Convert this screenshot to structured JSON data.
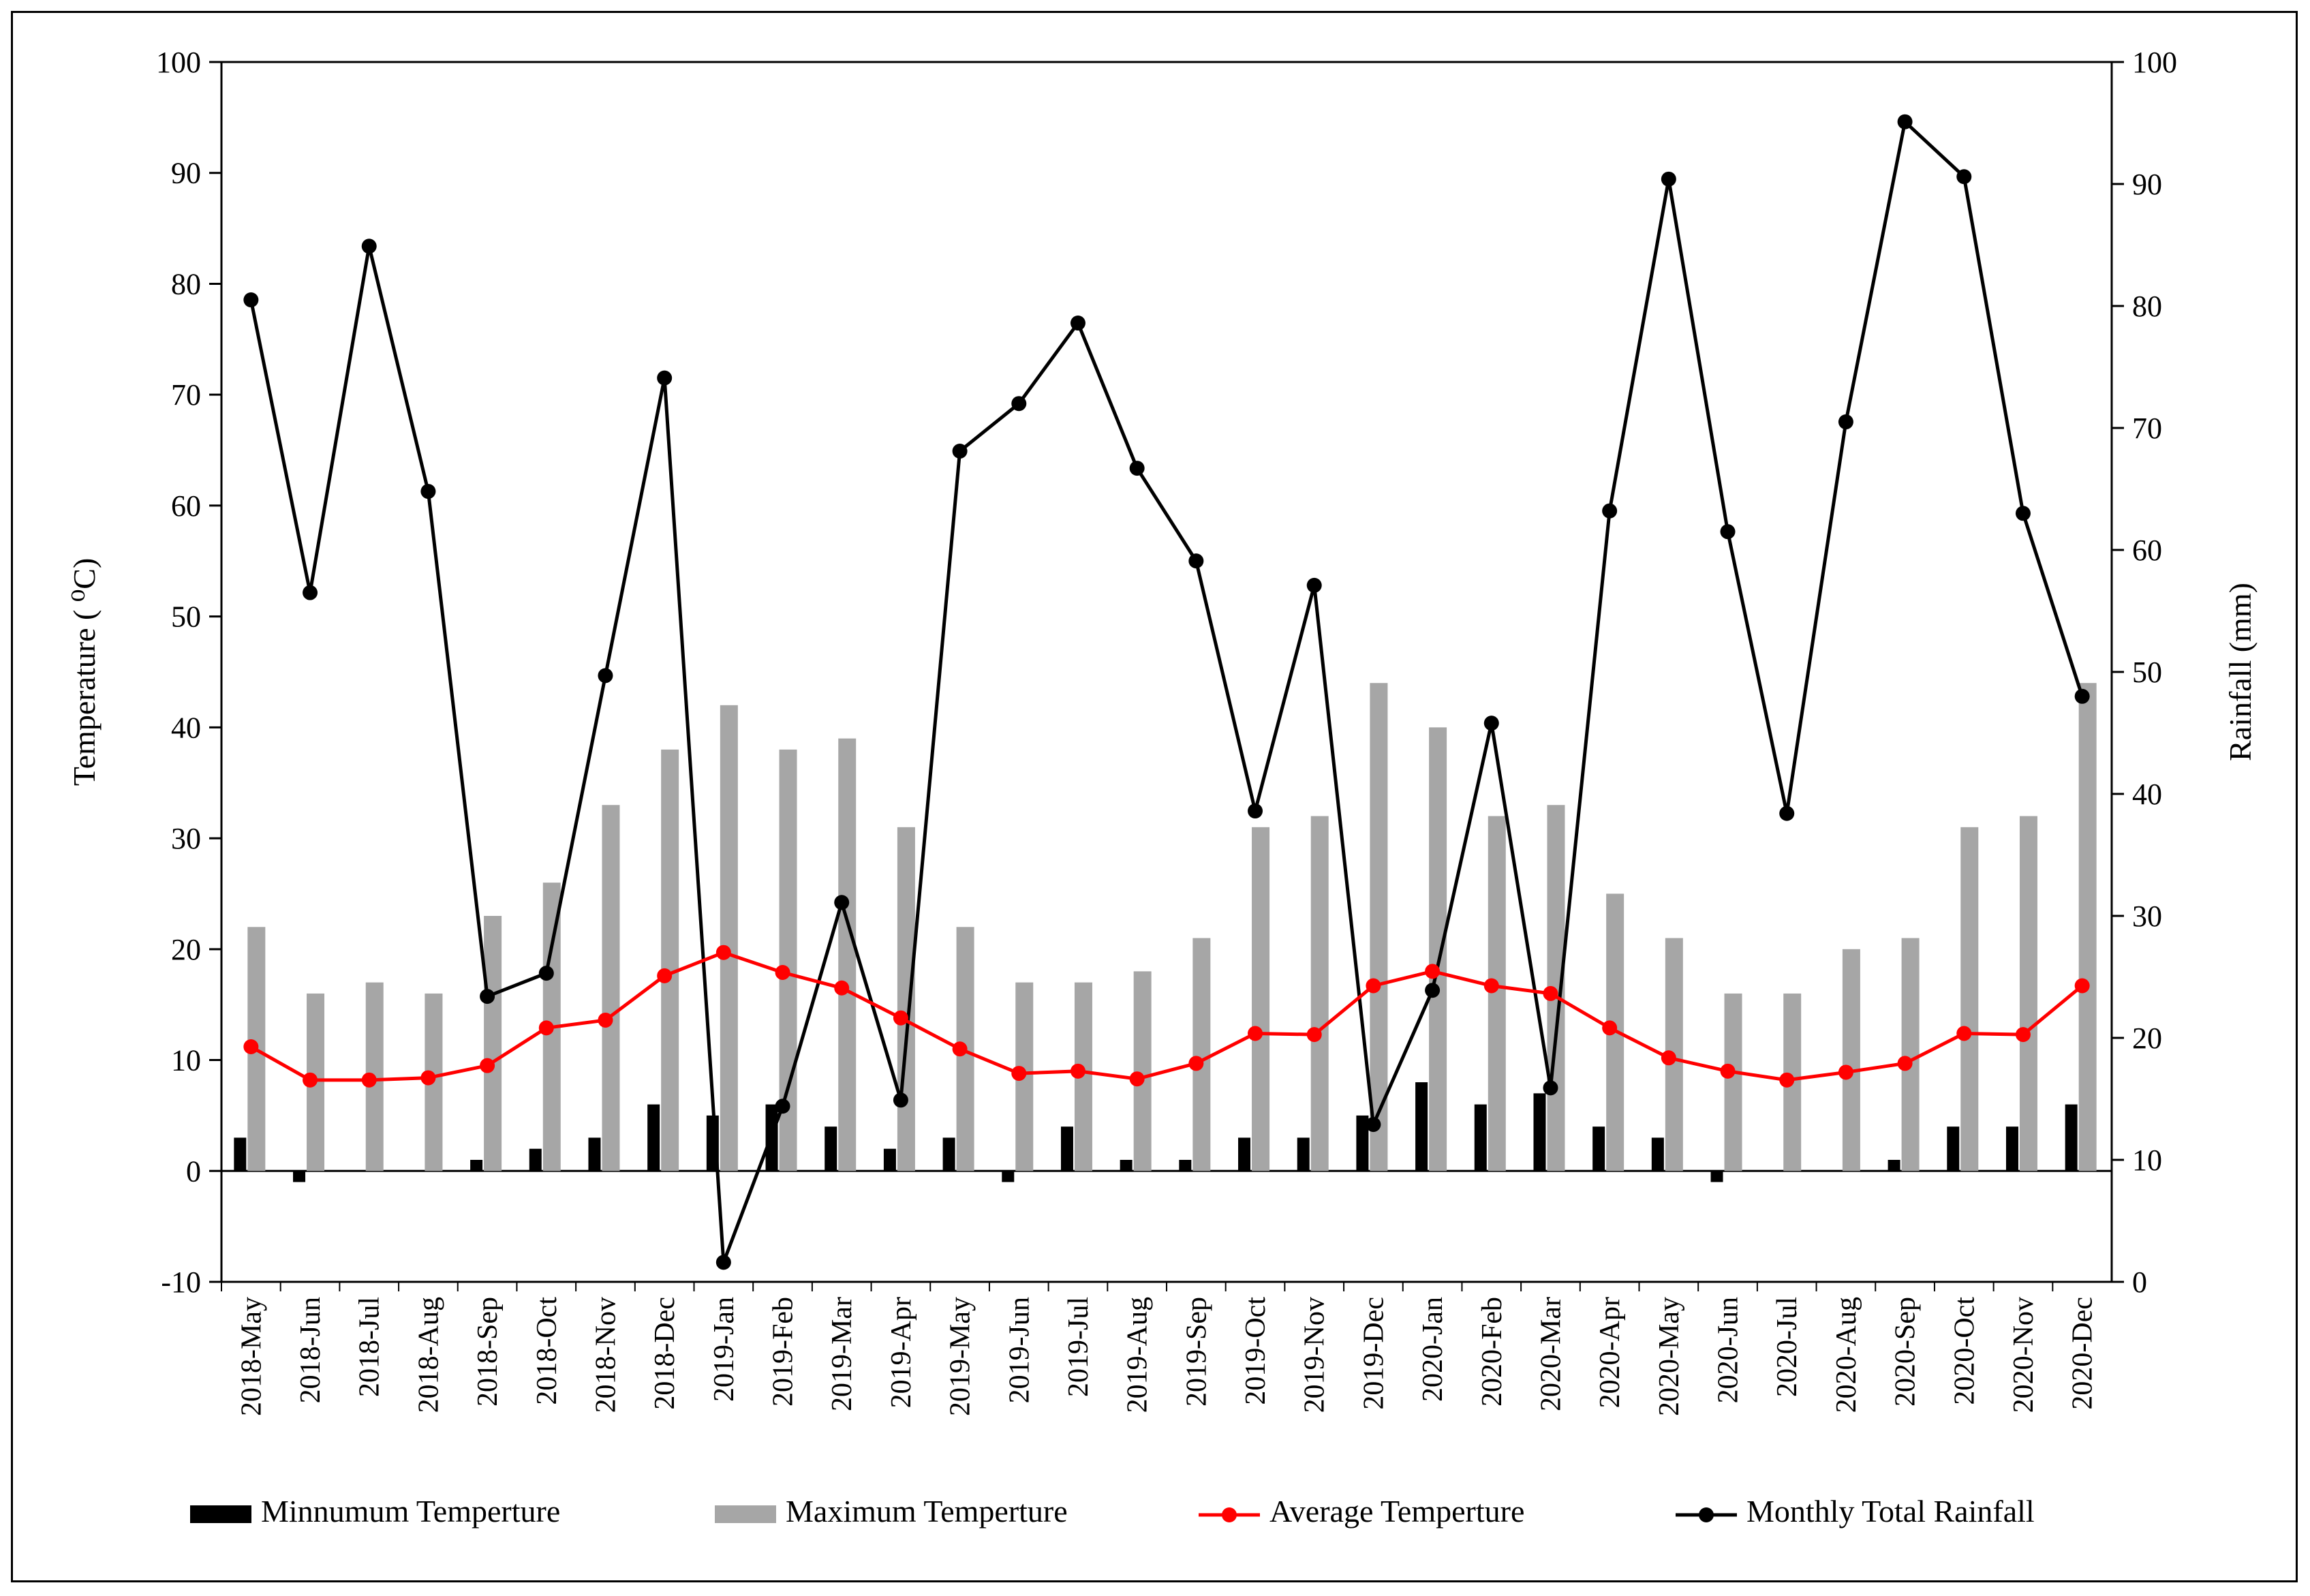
{
  "chart_data": {
    "type": "bar+line",
    "title": "",
    "ylabel": "Temperature ( ⁰C)",
    "ylabel_right": "Rainfall (mm)",
    "ylim": [
      -10,
      100
    ],
    "ylim_right": [
      0,
      100
    ],
    "yticks": [
      -10,
      0,
      10,
      20,
      30,
      40,
      50,
      60,
      70,
      80,
      90,
      100
    ],
    "yticks_right": [
      0,
      10,
      20,
      30,
      40,
      50,
      60,
      70,
      80,
      90,
      100
    ],
    "grid": false,
    "legend_position": "bottom",
    "categories": [
      "2018-May",
      "2018-Jun",
      "2018-Jul",
      "2018-Aug",
      "2018-Sep",
      "2018-Oct",
      "2018-Nov",
      "2018-Dec",
      "2019-Jan",
      "2019-Feb",
      "2019-Mar",
      "2019-Apr",
      "2019-May",
      "2019-Jun",
      "2019-Jul",
      "2019-Aug",
      "2019-Sep",
      "2019-Oct",
      "2019-Nov",
      "2019-Dec",
      "2020-Jan",
      "2020-Feb",
      "2020-Mar",
      "2020-Apr",
      "2020-May",
      "2020-Jun",
      "2020-Jul",
      "2020-Aug",
      "2020-Sep",
      "2020-Oct",
      "2020-Nov",
      "2020-Dec"
    ],
    "series": [
      {
        "name": "Minnumum Temperture",
        "type": "bar",
        "axis": "left",
        "color": "#000000",
        "values": [
          3,
          -1,
          0,
          0,
          1,
          2,
          3,
          6,
          5,
          6,
          4,
          2,
          3,
          -1,
          4,
          1,
          1,
          3,
          3,
          5,
          8,
          6,
          7,
          4,
          3,
          -1,
          0,
          0,
          1,
          4,
          4,
          6
        ]
      },
      {
        "name": "Maximum Temperture",
        "type": "bar",
        "axis": "left",
        "color": "#a6a6a6",
        "values": [
          22,
          16,
          17,
          16,
          23,
          26,
          33,
          38,
          42,
          38,
          39,
          31,
          22,
          17,
          17,
          18,
          21,
          31,
          32,
          44,
          40,
          32,
          33,
          25,
          21,
          16,
          16,
          20,
          21,
          31,
          32,
          44
        ]
      },
      {
        "name": "Average Temperture",
        "type": "line",
        "axis": "left",
        "color": "#ff0000",
        "values": [
          11.2,
          8.2,
          8.2,
          8.4,
          9.5,
          12.9,
          13.6,
          17.6,
          19.7,
          17.9,
          16.5,
          13.8,
          11,
          8.8,
          9,
          8.3,
          9.7,
          12.4,
          12.3,
          16.7,
          18,
          16.7,
          16,
          12.9,
          10.2,
          9,
          8.2,
          8.9,
          9.7,
          12.4,
          12.3,
          16.7
        ]
      },
      {
        "name": "Monthly Total Rainfall",
        "type": "line",
        "axis": "right",
        "color": "#000000",
        "values": [
          80.5,
          56.5,
          84.9,
          64.8,
          23.4,
          25.3,
          49.7,
          74.1,
          1.6,
          14.4,
          31.1,
          14.9,
          68.1,
          72,
          78.6,
          66.7,
          59.1,
          38.6,
          57.1,
          12.9,
          23.9,
          45.8,
          15.9,
          63.2,
          90.4,
          61.5,
          38.4,
          70.5,
          95.1,
          90.6,
          63,
          48
        ]
      }
    ]
  }
}
